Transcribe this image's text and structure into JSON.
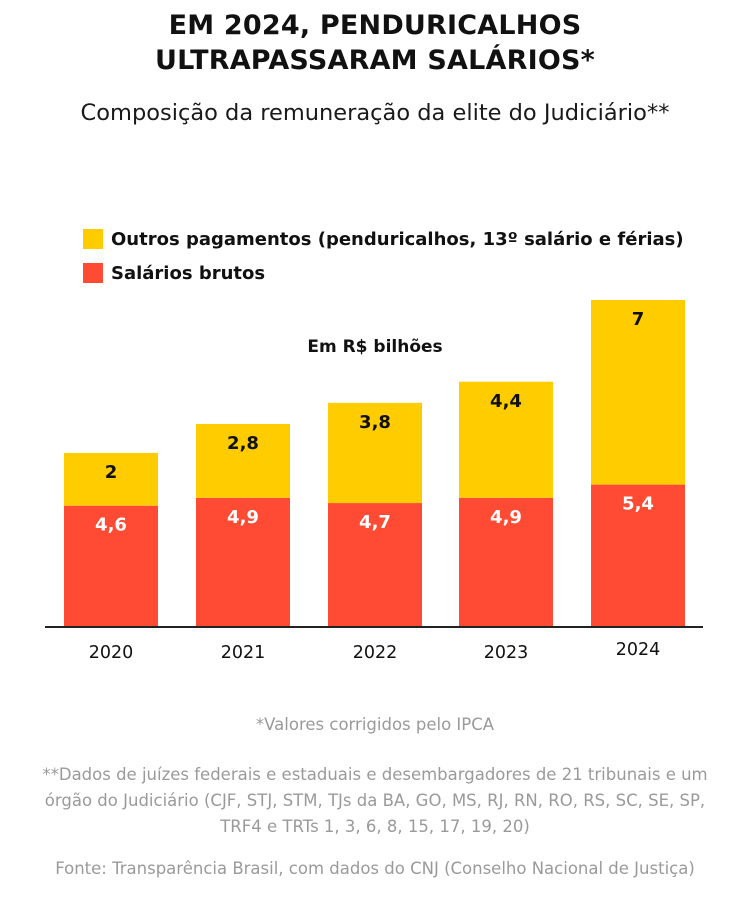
{
  "title_line1": "EM 2024, PENDURICALHOS",
  "title_line2": "ULTRAPASSARAM SALÁRIOS*",
  "subtitle": "Composição da remuneração da elite do Judiciário**",
  "legend": {
    "outros": "Outros pagamentos (penduricalhos, 13º salário e férias)",
    "salarios": "Salários brutos"
  },
  "colors": {
    "outros": "#FFCC00",
    "salarios": "#FF4B33",
    "axis": "#222222"
  },
  "chart_data": {
    "type": "bar",
    "stacked": true,
    "unit_label": "Em R$ bilhões",
    "categories": [
      "2020",
      "2021",
      "2022",
      "2023",
      "2024"
    ],
    "series": [
      {
        "name": "Salários brutos",
        "values": [
          4.6,
          4.9,
          4.7,
          4.9,
          5.4
        ],
        "labels": [
          "4,6",
          "4,9",
          "4,7",
          "4,9",
          "5,4"
        ]
      },
      {
        "name": "Outros pagamentos (penduricalhos, 13º salário e férias)",
        "values": [
          2,
          2.8,
          3.8,
          4.4,
          7
        ],
        "labels": [
          "2",
          "2,8",
          "3,8",
          "4,4",
          "7"
        ]
      }
    ],
    "ylim": [
      0,
      12.4
    ],
    "grid": false,
    "legend_position": "top-left"
  },
  "notes": {
    "ipca": "*Valores corrigidos pelo IPCA",
    "dados_line1": "**Dados de juízes federais e estaduais e desembargadores de 21 tribunais e um",
    "dados_line2": "órgão do Judiciário (CJF, STJ, STM, TJs da BA, GO, MS, RJ, RN, RO, RS, SC, SE, SP,",
    "dados_line3": "TRF4 e TRTs 1, 3, 6, 8, 15, 17, 19, 20)",
    "fonte": "Fonte: Transparência Brasil, com dados do CNJ (Conselho Nacional de Justiça)"
  }
}
